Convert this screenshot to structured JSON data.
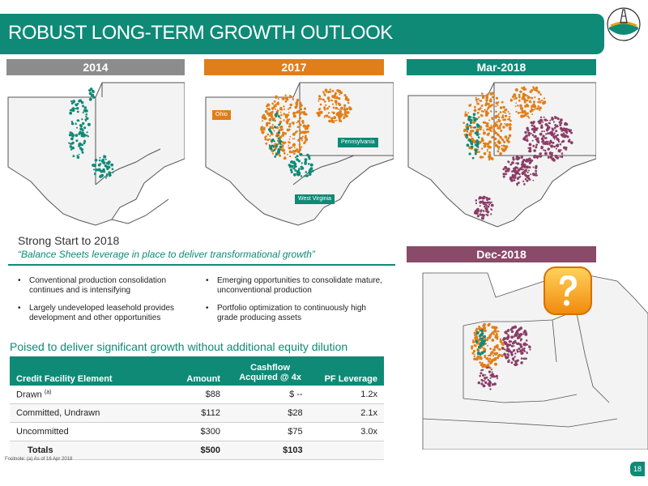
{
  "slide": {
    "title": "ROBUST LONG-TERM GROWTH OUTLOOK",
    "page_number": "18",
    "footnote": "Footnote: (a) As of 16 Apr 2018"
  },
  "colors": {
    "brand_green": "#0e8a77",
    "orange": "#e07e19",
    "purple": "#8a3d66",
    "gray_header": "#8c8c8c",
    "dec_header": "#8a4a6a"
  },
  "maps": [
    {
      "label": "2014",
      "header_color": "#8c8c8c"
    },
    {
      "label": "2017",
      "header_color": "#e07e19",
      "state_labels": [
        "Ohio",
        "Pennsylvania",
        "West Virginia"
      ]
    },
    {
      "label": "Mar-2018",
      "header_color": "#0e8a77"
    },
    {
      "label": "Dec-2018",
      "header_color": "#8a4a6a",
      "icon": "question-mark-icon"
    }
  ],
  "summary": {
    "heading": "Strong Start to 2018",
    "tagline": "“Balance Sheets leverage in place to deliver transformational growth”",
    "bullets": [
      "Conventional production consolidation continues and is intensifying",
      "Emerging opportunities to consolidate mature, unconventional production",
      "Largely undeveloped leasehold provides development and other opportunities",
      "Portfolio optimization to continuously high grade producing assets"
    ]
  },
  "credit": {
    "heading": "Poised to deliver significant growth without additional equity dilution",
    "columns": [
      "Credit Facility Element",
      "Amount",
      "Cashflow Acquired @ 4x",
      "PF Leverage"
    ],
    "rows": [
      {
        "element": "Drawn",
        "note": "(a)",
        "amount": "$88",
        "cashflow": "$ --",
        "leverage": "1.2x"
      },
      {
        "element": "Committed, Undrawn",
        "note": "",
        "amount": "$112",
        "cashflow": "$28",
        "leverage": "2.1x"
      },
      {
        "element": "Uncommitted",
        "note": "",
        "amount": "$300",
        "cashflow": "$75",
        "leverage": "3.0x"
      }
    ],
    "totals": {
      "label": "Totals",
      "amount": "$500",
      "cashflow": "$103"
    }
  }
}
